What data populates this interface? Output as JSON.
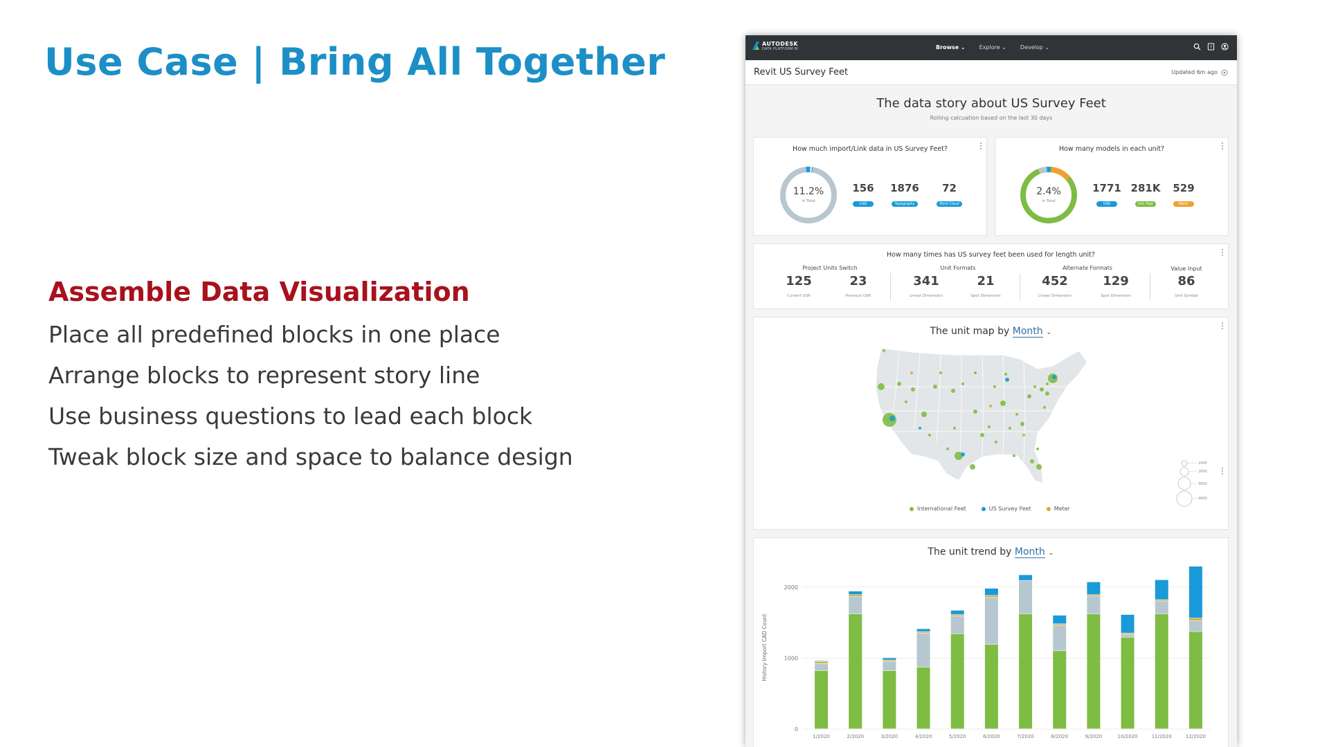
{
  "slide": {
    "title": "Use Case | Bring All Together",
    "section_heading": "Assemble Data Visualization",
    "bullets": [
      "Place all predefined blocks in one place",
      "Arrange blocks to represent story line",
      "Use business questions to lead each block",
      "Tweak block size and space to balance design"
    ]
  },
  "dashboard": {
    "brand": {
      "name": "AUTODESK",
      "sub": "DATA PLATFORM BI"
    },
    "nav": [
      "Browse",
      "Explore",
      "Develop"
    ],
    "icons": [
      "search-icon",
      "help-book-icon",
      "user-profile-icon"
    ],
    "page_title": "Revit US Survey Feet",
    "updated": "Updated 6m ago",
    "story_title": "The data story about US Survey Feet",
    "story_subtitle": "Rolling calcuation based on the last 30 days",
    "card_import": {
      "question": "How much import/Link data in US Survey Feet?",
      "percent": "11.2%",
      "percent_label": "in Total",
      "metrics": [
        {
          "value": "156",
          "label": "CAD",
          "color": "#1a9ad8"
        },
        {
          "value": "1876",
          "label": "Topography",
          "color": "#1a9ad8"
        },
        {
          "value": "72",
          "label": "Point Cloud",
          "color": "#1a9ad8"
        }
      ]
    },
    "card_models": {
      "question": "How many models in each unit?",
      "percent": "2.4%",
      "percent_label": "in Total",
      "metrics": [
        {
          "value": "1771",
          "label": "USft",
          "color": "#1a9ad8"
        },
        {
          "value": "281K",
          "label": "Intl. Feet",
          "color": "#7ebc44"
        },
        {
          "value": "529",
          "label": "Meter",
          "color": "#f0a032"
        }
      ]
    },
    "card_usage": {
      "question": "How many times has US survey feet been used for length unit?",
      "groups": [
        {
          "label": "Project Units Switch",
          "items": [
            {
              "value": "125",
              "label": "Current USft"
            },
            {
              "value": "23",
              "label": "Previous USft"
            }
          ]
        },
        {
          "label": "Unit Formats",
          "items": [
            {
              "value": "341",
              "label": "Linear Dimension"
            },
            {
              "value": "21",
              "label": "Spot Dimension"
            }
          ]
        },
        {
          "label": "Alternate Formats",
          "items": [
            {
              "value": "452",
              "label": "Linear Dimension"
            },
            {
              "value": "129",
              "label": "Spot Dimension"
            }
          ]
        },
        {
          "label": "Value Input",
          "items": [
            {
              "value": "86",
              "label": "Unit Symbol"
            }
          ]
        }
      ]
    },
    "card_map": {
      "title_prefix": "The unit map by ",
      "period": "Month",
      "legend": [
        {
          "label": "International Feet",
          "color": "#7ebc44"
        },
        {
          "label": "US Survey Feet",
          "color": "#1a9ad8"
        },
        {
          "label": "Meter",
          "color": "#e0a33a"
        }
      ],
      "size_legend": [
        "1000",
        "2000",
        "3000",
        "4000"
      ]
    },
    "card_trend": {
      "title_prefix": "The unit trend by ",
      "period": "Month"
    }
  },
  "chart_data": {
    "type": "bar",
    "stacked": true,
    "title": "",
    "xlabel": "",
    "ylabel": "History Import CAD Count",
    "ylim": [
      0,
      2300
    ],
    "yticks": [
      0,
      1000,
      2000
    ],
    "categories": [
      "1/2020",
      "2/2020",
      "3/2020",
      "4/2020",
      "5/2020",
      "6/2020",
      "7/2020",
      "8/2020",
      "9/2020",
      "10/2020",
      "11/2020",
      "12/2020"
    ],
    "series": [
      {
        "color": "#7ebc44",
        "values": [
          820,
          1620,
          820,
          870,
          1340,
          1190,
          1620,
          1100,
          1620,
          1290,
          1620,
          1370
        ]
      },
      {
        "color": "#b7c7cf",
        "values": [
          100,
          240,
          130,
          480,
          250,
          660,
          470,
          360,
          250,
          40,
          180,
          150
        ]
      },
      {
        "color": "#d6b24a",
        "values": [
          30,
          30,
          20,
          20,
          20,
          30,
          0,
          20,
          20,
          20,
          20,
          40
        ]
      },
      {
        "color": "#1a9ad8",
        "values": [
          10,
          50,
          30,
          40,
          60,
          100,
          80,
          120,
          180,
          260,
          280,
          730
        ]
      }
    ]
  }
}
